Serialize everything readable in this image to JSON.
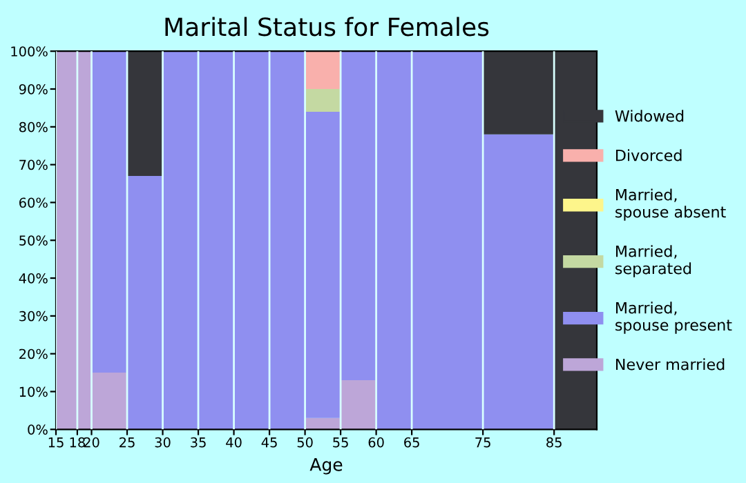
{
  "chart_data": {
    "type": "bar",
    "stacked": true,
    "title": "Marital Status for Females",
    "xlabel": "Age",
    "x": [
      16.5,
      19,
      22.5,
      27.5,
      32.5,
      37.5,
      42.5,
      47.5,
      52.5,
      57.5,
      62.5,
      70,
      80,
      88
    ],
    "xlim": [
      15,
      91
    ],
    "xticks": [
      15,
      18,
      20,
      25,
      30,
      35,
      40,
      45,
      50,
      55,
      60,
      65,
      75,
      85
    ],
    "ylim": [
      0,
      100
    ],
    "yticks": [
      {
        "value": 0,
        "label": "0%"
      },
      {
        "value": 10,
        "label": "10%"
      },
      {
        "value": 20,
        "label": "20%"
      },
      {
        "value": 30,
        "label": "30%"
      },
      {
        "value": 40,
        "label": "40%"
      },
      {
        "value": 50,
        "label": "50%"
      },
      {
        "value": 60,
        "label": "60%"
      },
      {
        "value": 70,
        "label": "70%"
      },
      {
        "value": 80,
        "label": "80%"
      },
      {
        "value": 90,
        "label": "90%"
      },
      {
        "value": 100,
        "label": "100%"
      }
    ],
    "grid": "x",
    "legend": "right",
    "series": [
      {
        "name": "Never married",
        "color": "#bda6d8",
        "values": [
          100,
          100,
          15,
          0,
          0,
          0,
          0,
          0,
          3,
          13,
          0,
          0,
          0,
          0
        ]
      },
      {
        "name": "Married,\nspouse present",
        "color": "#8f8ff0",
        "values": [
          0,
          0,
          85,
          67,
          100,
          100,
          100,
          100,
          81,
          87,
          100,
          100,
          78,
          0
        ]
      },
      {
        "name": "Married,\nseparated",
        "color": "#c4d9a2",
        "values": [
          0,
          0,
          0,
          0,
          0,
          0,
          0,
          0,
          6,
          0,
          0,
          0,
          0,
          0
        ]
      },
      {
        "name": "Married,\nspouse absent",
        "color": "#fdf58b",
        "values": [
          0,
          0,
          0,
          0,
          0,
          0,
          0,
          0,
          0,
          0,
          0,
          0,
          0,
          0
        ]
      },
      {
        "name": "Divorced",
        "color": "#f9b0ac",
        "values": [
          0,
          0,
          0,
          0,
          0,
          0,
          0,
          0,
          10,
          0,
          0,
          0,
          0,
          0
        ]
      },
      {
        "name": "Widowed",
        "color": "#35363b",
        "values": [
          0,
          0,
          0,
          33,
          0,
          0,
          0,
          0,
          0,
          0,
          0,
          0,
          22,
          100
        ]
      }
    ]
  }
}
